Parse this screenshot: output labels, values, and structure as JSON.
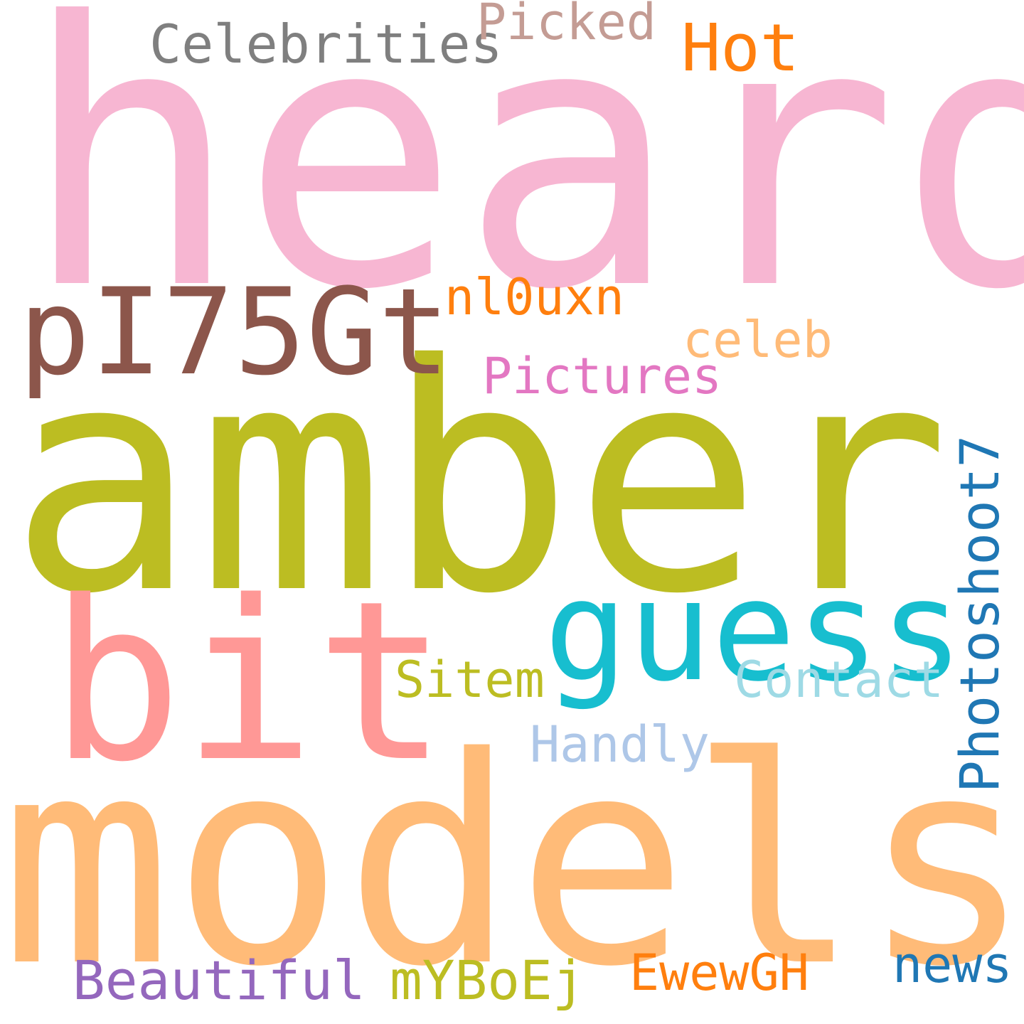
{
  "words": [
    {
      "text": "heard",
      "color": "#f7b6d2"
    },
    {
      "text": "amber",
      "color": "#bcbd22"
    },
    {
      "text": "models",
      "color": "#ffbb78"
    },
    {
      "text": "bit",
      "color": "#ff9896"
    },
    {
      "text": "pI75Gt",
      "color": "#8c564b"
    },
    {
      "text": "guess",
      "color": "#17becf"
    },
    {
      "text": "Hot",
      "color": "#ff7f0e"
    },
    {
      "text": "Celebrities",
      "color": "#7f7f7f"
    },
    {
      "text": "Picked",
      "color": "#c49c94"
    },
    {
      "text": "nl0uxn",
      "color": "#ff7f0e"
    },
    {
      "text": "celeb",
      "color": "#ffbb78"
    },
    {
      "text": "Pictures",
      "color": "#e377c2"
    },
    {
      "text": "Sitem",
      "color": "#bcbd22"
    },
    {
      "text": "Contact",
      "color": "#9edae5"
    },
    {
      "text": "Handly",
      "color": "#aec7e8"
    },
    {
      "text": "Photoshoot7",
      "color": "#1f77b4"
    },
    {
      "text": "Beautiful",
      "color": "#9467bd"
    },
    {
      "text": "mYBoEj",
      "color": "#bcbd22"
    },
    {
      "text": "EwewGH",
      "color": "#ff7f0e"
    },
    {
      "text": "news",
      "color": "#1f77b4"
    }
  ]
}
